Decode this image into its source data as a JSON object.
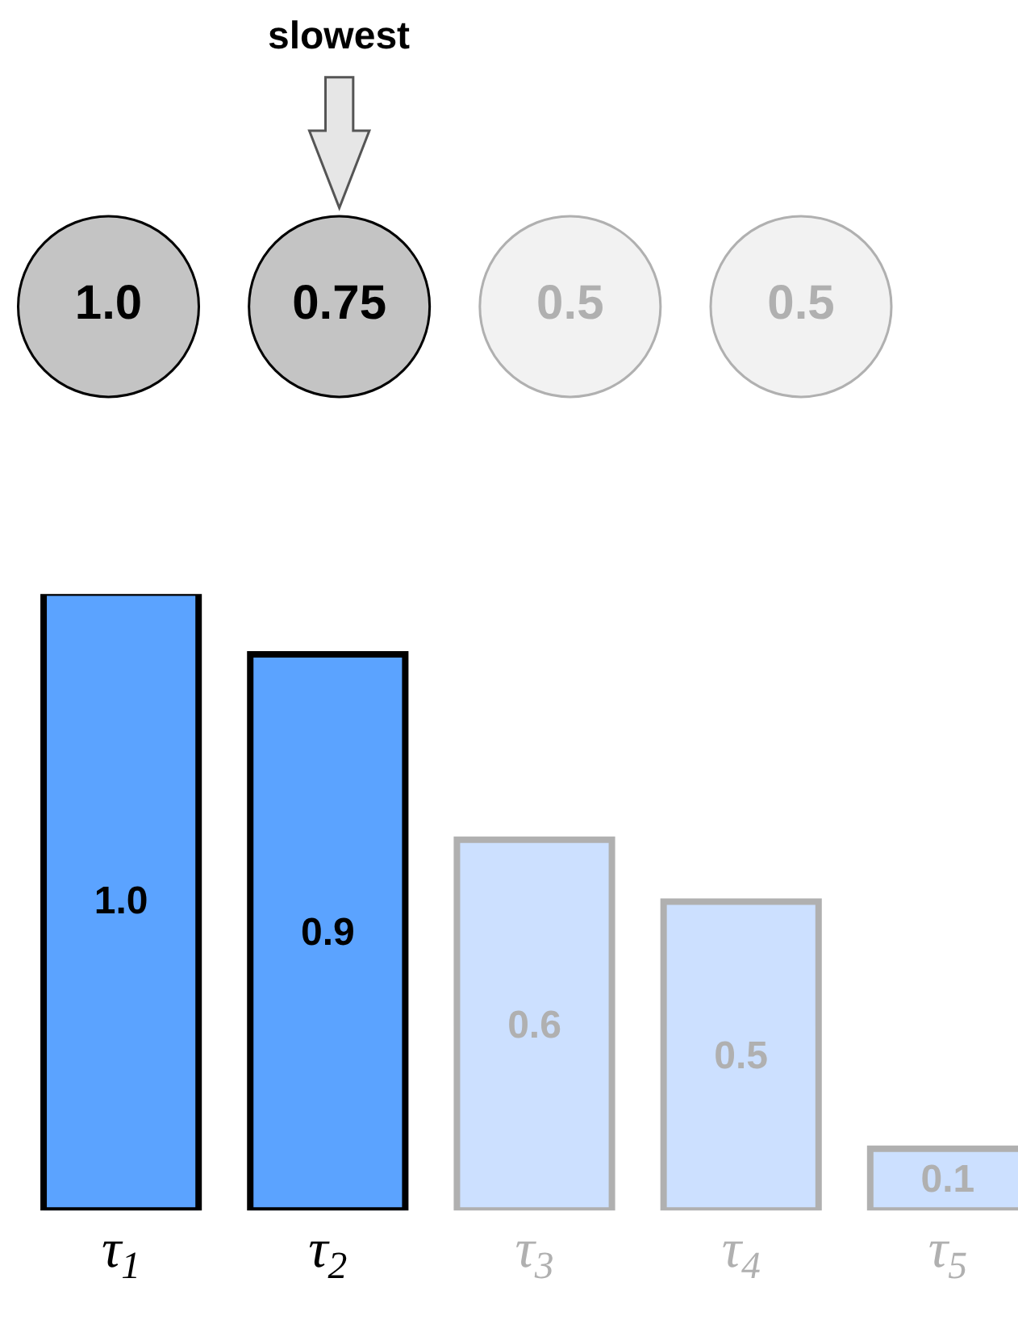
{
  "chart_data": [
    {
      "type": "other",
      "categories": [
        null,
        null,
        null,
        null
      ],
      "value_labels": [
        "1.0",
        "0.75",
        "0.5",
        "0.5"
      ],
      "colors": [
        "#c4c4c4",
        "#c4c4c4",
        "#f2f2f2",
        "#f2f2f2"
      ],
      "annotations": [
        "slowest"
      ]
    },
    {
      "type": "bar",
      "categories": [
        "τ$_{1}$",
        "τ$_{2}$",
        "τ$_{3}$",
        "τ$_{4}$",
        "τ$_{5}$"
      ],
      "values": [
        1.0,
        0.9,
        0.6,
        0.5,
        0.1
      ],
      "value_labels": [
        "1.0",
        "0.9",
        "0.6",
        "0.5",
        "0.1"
      ],
      "colors": [
        "#5ba3ff",
        "#5ba3ff",
        "#cce0ff",
        "#cce0ff",
        "#cce0ff"
      ]
    }
  ]
}
